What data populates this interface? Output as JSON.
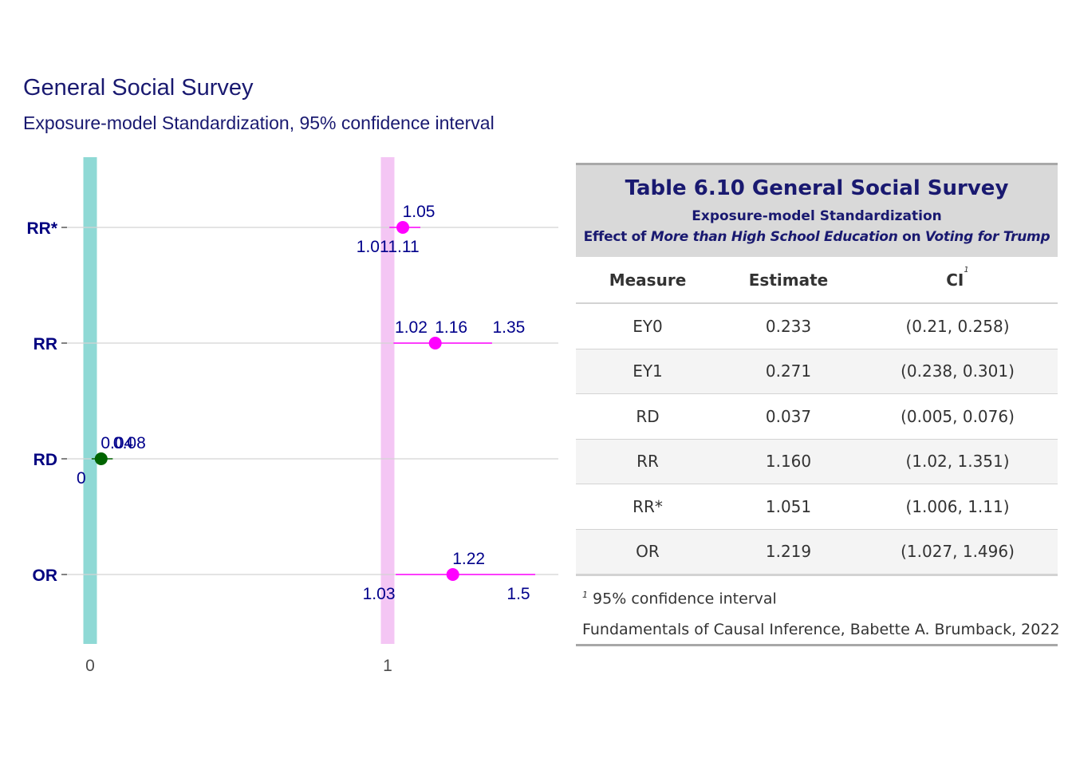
{
  "plot": {
    "title": "General Social Survey",
    "subtitle": "Exposure-model Standardization, 95% confidence interval"
  },
  "chart_data": {
    "type": "scatter",
    "orientation": "horizontal-forest",
    "categories": [
      "RR*",
      "RR",
      "RD",
      "OR"
    ],
    "x_ticks": [
      0,
      1
    ],
    "x_tick_labels": [
      "0",
      "1"
    ],
    "xlim": [
      -0.05,
      1.57
    ],
    "reference_lines": [
      {
        "x": 0,
        "color": "#8fd9d5"
      },
      {
        "x": 1,
        "color": "#f4c6f4"
      }
    ],
    "points": [
      {
        "measure": "RR*",
        "estimate": 1.051,
        "lower": 1.006,
        "upper": 1.11,
        "label_est": "1.05",
        "label_lower": "1.01",
        "label_upper": "1.11",
        "color": "#ff00ff"
      },
      {
        "measure": "RR",
        "estimate": 1.16,
        "lower": 1.02,
        "upper": 1.351,
        "label_est": "1.16",
        "label_lower": "1.02",
        "label_upper": "1.35",
        "color": "#ff00ff"
      },
      {
        "measure": "RD",
        "estimate": 0.037,
        "lower": 0.005,
        "upper": 0.076,
        "label_est": "0.04",
        "label_lower": "0",
        "label_upper": "0.08",
        "color": "#006400"
      },
      {
        "measure": "OR",
        "estimate": 1.219,
        "lower": 1.027,
        "upper": 1.496,
        "label_est": "1.22",
        "label_lower": "1.03",
        "label_upper": "1.5",
        "color": "#ff00ff"
      }
    ],
    "grid": true,
    "colors": {
      "axis_label": "#000080",
      "value_label": "#00008b",
      "title": "#191970"
    }
  },
  "table": {
    "title": "Table 6.10 General Social Survey",
    "subtitle_line1": "Exposure-model Standardization",
    "subtitle_line2": {
      "pre": "Effect of ",
      "exposure": "More than High School Education",
      "mid": " on ",
      "outcome": "Voting for Trump"
    },
    "columns": [
      "Measure",
      "Estimate",
      "CI"
    ],
    "ci_footnote_mark": "1",
    "rows": [
      {
        "measure": "EY0",
        "estimate": "0.233",
        "ci": "(0.21, 0.258)"
      },
      {
        "measure": "EY1",
        "estimate": "0.271",
        "ci": "(0.238, 0.301)"
      },
      {
        "measure": "RD",
        "estimate": "0.037",
        "ci": "(0.005, 0.076)"
      },
      {
        "measure": "RR",
        "estimate": "1.160",
        "ci": "(1.02, 1.351)"
      },
      {
        "measure": "RR*",
        "estimate": "1.051",
        "ci": "(1.006, 1.11)"
      },
      {
        "measure": "OR",
        "estimate": "1.219",
        "ci": "(1.027, 1.496)"
      }
    ],
    "footnote_mark": "1",
    "footnote": "95% confidence interval",
    "source": "Fundamentals of Causal Inference, Babette A. Brumback, 2022"
  }
}
